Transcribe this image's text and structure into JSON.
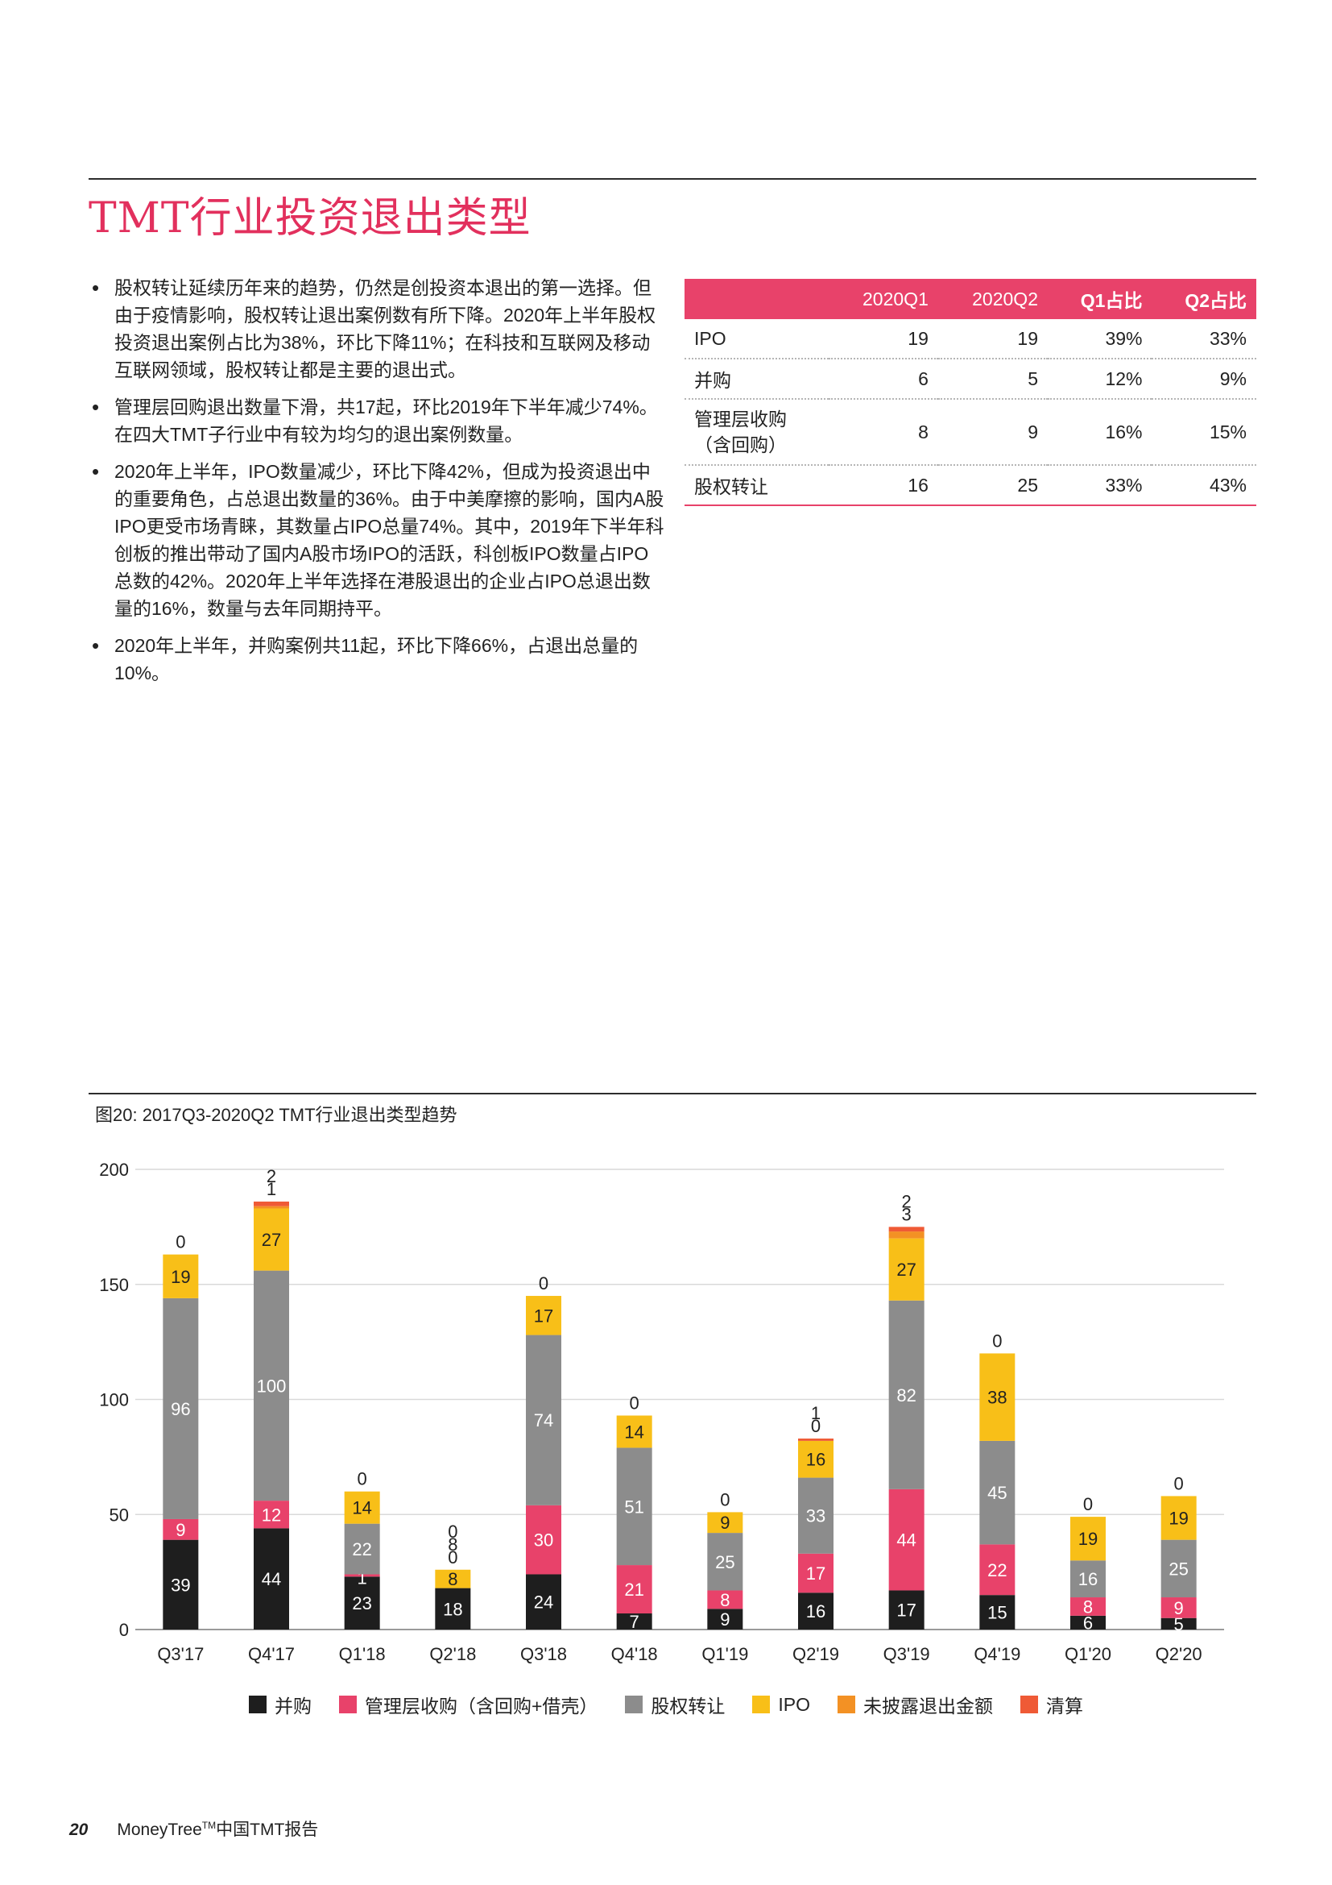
{
  "page": {
    "title": "TMT行业投资退出类型",
    "page_number": "20",
    "footer_brand": "MoneyTree",
    "footer_tm": "TM",
    "footer_suffix": "中国TMT报告"
  },
  "bullets": [
    "股权转让延续历年来的趋势，仍然是创投资本退出的第一选择。但由于疫情影响，股权转让退出案例数有所下降。2020年上半年股权投资退出案例占比为38%，环比下降11%；在科技和互联网及移动互联网领域，股权转让都是主要的退出式。",
    "管理层回购退出数量下滑，共17起，环比2019年下半年减少74%。在四大TMT子行业中有较为均匀的退出案例数量。",
    "2020年上半年，IPO数量减少，环比下降42%，但成为投资退出中的重要角色，占总退出数量的36%。由于中美摩擦的影响，国内A股IPO更受市场青睐，其数量占IPO总量74%。其中，2019年下半年科创板的推出带动了国内A股市场IPO的活跃，科创板IPO数量占IPO总数的42%。2020年上半年选择在港股退出的企业占IPO总退出数量的16%，数量与去年同期持平。",
    "2020年上半年，并购案例共11起，环比下降66%，占退出总量的10%。"
  ],
  "table": {
    "headers": [
      "",
      "2020Q1",
      "2020Q2",
      "Q1占比",
      "Q2占比"
    ],
    "rows": [
      {
        "label": "IPO",
        "q1": "19",
        "q2": "19",
        "p1": "39%",
        "p2": "33%"
      },
      {
        "label": "并购",
        "q1": "6",
        "q2": "5",
        "p1": "12%",
        "p2": "9%"
      },
      {
        "label": "管理层收购",
        "label2": "（含回购）",
        "q1": "8",
        "q2": "9",
        "p1": "16%",
        "p2": "15%"
      },
      {
        "label": "股权转让",
        "q1": "16",
        "q2": "25",
        "p1": "33%",
        "p2": "43%"
      }
    ]
  },
  "chart_caption": "图20: 2017Q3-2020Q2 TMT行业退出类型趋势",
  "chart_data": {
    "type": "bar",
    "stacked": true,
    "title": "图20: 2017Q3-2020Q2 TMT行业退出类型趋势",
    "categories": [
      "Q3'17",
      "Q4'17",
      "Q1'18",
      "Q2'18",
      "Q3'18",
      "Q4'18",
      "Q1'19",
      "Q2'19",
      "Q3'19",
      "Q4'19",
      "Q1'20",
      "Q2'20"
    ],
    "yticks": [
      0,
      50,
      100,
      150,
      200
    ],
    "ylim": [
      0,
      200
    ],
    "grid": true,
    "legend_position": "bottom",
    "series": [
      {
        "name": "并购",
        "color": "#1e1e1e",
        "values": [
          39,
          44,
          23,
          18,
          24,
          7,
          9,
          16,
          17,
          15,
          6,
          5
        ]
      },
      {
        "name": "管理层收购（含回购+借壳）",
        "color": "#e8426a",
        "values": [
          9,
          12,
          1,
          0,
          30,
          21,
          8,
          17,
          44,
          22,
          8,
          9
        ]
      },
      {
        "name": "股权转让",
        "color": "#8c8c8c",
        "values": [
          96,
          100,
          22,
          0,
          74,
          51,
          25,
          33,
          82,
          45,
          16,
          25
        ]
      },
      {
        "name": "IPO",
        "color": "#f8bf18",
        "values": [
          19,
          27,
          14,
          8,
          17,
          14,
          9,
          16,
          27,
          38,
          19,
          19
        ]
      },
      {
        "name": "未披露退出金额",
        "color": "#f39124",
        "values": [
          0,
          1,
          0,
          0,
          0,
          0,
          0,
          0,
          3,
          0,
          0,
          0
        ]
      },
      {
        "name": "清算",
        "color": "#ef5a36",
        "values": [
          0,
          2,
          0,
          0,
          0,
          0,
          0,
          1,
          2,
          0,
          0,
          0
        ]
      }
    ],
    "top_labels": [
      [
        "0"
      ],
      [
        "2",
        "1"
      ],
      [
        "0"
      ],
      [
        "0",
        "8",
        "0"
      ],
      [
        "0"
      ],
      [
        "0"
      ],
      [
        "0"
      ],
      [
        "1",
        "0"
      ],
      [
        "2",
        "3"
      ],
      [
        "0"
      ],
      [
        "0"
      ],
      [
        "0"
      ]
    ]
  }
}
